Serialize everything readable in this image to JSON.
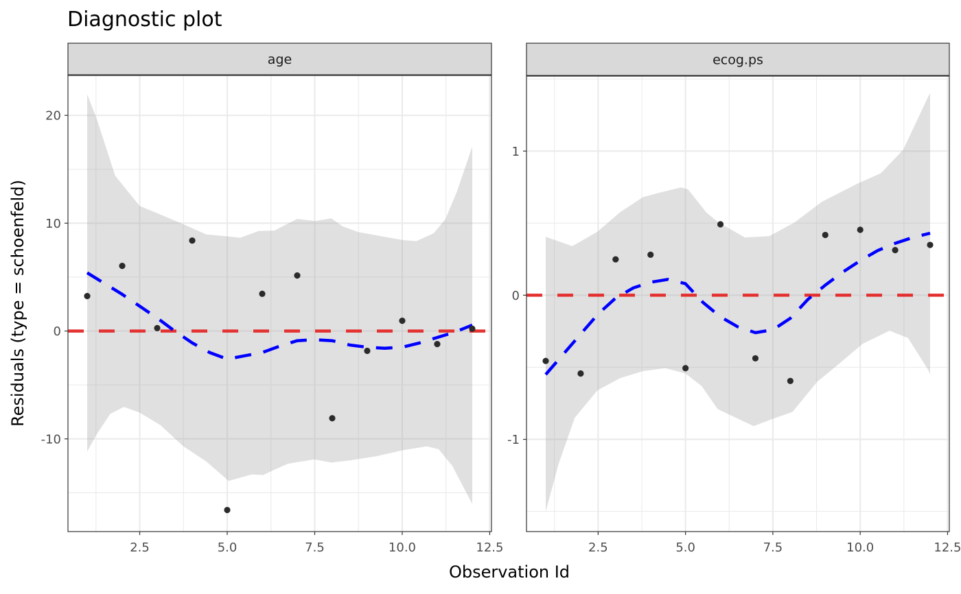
{
  "chart_data": {
    "type": "scatter",
    "title": "Diagnostic plot",
    "xlabel": "Observation Id",
    "ylabel": "Residuals (type = schoenfeld)",
    "grid": true,
    "colors": {
      "points": "#2b2b2b",
      "smooth": "#0000ff",
      "reference": "#e3302f",
      "band": "#e0e0e0",
      "strip": "#d9d9d9",
      "grid": "#ebebeb",
      "border": "#333333"
    },
    "panels": [
      {
        "strip_label": "age",
        "xlim": [
          0.45,
          12.55
        ],
        "ylim": [
          -18.6,
          23.7
        ],
        "x_ticks": [
          2.5,
          5.0,
          7.5,
          10.0,
          12.5
        ],
        "x_tick_labels": [
          "2.5",
          "5.0",
          "7.5",
          "10.0",
          "12.5"
        ],
        "y_ticks": [
          -10,
          0,
          10,
          20
        ],
        "y_tick_labels": [
          "-10",
          "0",
          "10",
          "20"
        ],
        "y_minor": [
          -15,
          -5,
          5,
          15
        ],
        "reference_y": 0,
        "points": {
          "x": [
            1,
            2,
            3,
            4,
            5,
            6,
            7,
            8,
            9,
            10,
            11,
            12
          ],
          "y": [
            3.24,
            6.04,
            0.27,
            8.39,
            -16.6,
            3.45,
            5.15,
            -8.09,
            -1.84,
            0.95,
            -1.21,
            0.21
          ]
        },
        "smooth": {
          "x": [
            1,
            1.5,
            2,
            2.5,
            3,
            3.5,
            4,
            4.5,
            5,
            5.5,
            6,
            6.5,
            7,
            7.5,
            8,
            8.5,
            9,
            9.5,
            10,
            10.5,
            11,
            11.5,
            12
          ],
          "y": [
            5.4,
            4.4,
            3.4,
            2.3,
            1.2,
            0.0,
            -1.1,
            -2.0,
            -2.6,
            -2.3,
            -2.0,
            -1.4,
            -0.9,
            -0.8,
            -0.9,
            -1.3,
            -1.5,
            -1.6,
            -1.5,
            -1.1,
            -0.6,
            -0.1,
            0.55
          ]
        },
        "band_upper": {
          "x": [
            1,
            1.27,
            1.8,
            2.5,
            3.09,
            3.75,
            4.4,
            5.04,
            5.37,
            5.9,
            6.35,
            7.0,
            7.52,
            7.97,
            8.3,
            8.75,
            9.28,
            10.0,
            10.4,
            10.9,
            11.23,
            11.56,
            12
          ],
          "y": [
            21.95,
            19.7,
            14.4,
            11.6,
            10.8,
            9.9,
            8.96,
            8.77,
            8.65,
            9.28,
            9.32,
            10.4,
            10.2,
            10.45,
            9.7,
            9.17,
            8.86,
            8.44,
            8.33,
            9.07,
            10.35,
            12.9,
            17.1
          ]
        },
        "band_lower": {
          "x": [
            1,
            1.27,
            1.66,
            2.05,
            2.5,
            3.09,
            3.75,
            4.4,
            5.04,
            5.7,
            6.03,
            6.35,
            6.74,
            7.49,
            7.97,
            8.5,
            9.28,
            10.0,
            10.7,
            11.04,
            11.43,
            12
          ],
          "y": [
            -11.17,
            -9.58,
            -7.67,
            -7.04,
            -7.57,
            -8.73,
            -10.7,
            -12.1,
            -13.9,
            -13.3,
            -13.35,
            -12.86,
            -12.3,
            -11.9,
            -12.2,
            -12.0,
            -11.6,
            -11.06,
            -10.7,
            -10.96,
            -12.5,
            -16.04
          ]
        }
      },
      {
        "strip_label": "ecog.ps",
        "xlim": [
          0.45,
          12.55
        ],
        "ylim": [
          -1.64,
          1.52
        ],
        "x_ticks": [
          2.5,
          5.0,
          7.5,
          10.0,
          12.5
        ],
        "x_tick_labels": [
          "2.5",
          "5.0",
          "7.5",
          "10.0",
          "12.5"
        ],
        "y_ticks": [
          -1,
          0,
          1
        ],
        "y_tick_labels": [
          "-1",
          "0",
          "1"
        ],
        "y_minor": [
          -1.5,
          -0.5,
          0.5,
          1.5
        ],
        "reference_y": 0,
        "points": {
          "x": [
            1,
            2,
            3,
            4,
            5,
            6,
            7,
            8,
            9,
            10,
            11,
            12
          ],
          "y": [
            -0.456,
            -0.543,
            0.249,
            0.281,
            -0.506,
            0.492,
            -0.438,
            -0.595,
            0.418,
            0.454,
            0.313,
            0.349
          ]
        },
        "smooth": {
          "x": [
            1,
            1.5,
            2,
            2.5,
            3,
            3.5,
            4,
            4.5,
            5,
            5.5,
            6,
            6.5,
            7,
            7.5,
            8,
            8.5,
            9,
            9.5,
            10,
            10.5,
            11,
            11.5,
            12
          ],
          "y": [
            -0.55,
            -0.41,
            -0.27,
            -0.13,
            -0.02,
            0.05,
            0.09,
            0.11,
            0.08,
            -0.05,
            -0.15,
            -0.22,
            -0.26,
            -0.24,
            -0.16,
            -0.03,
            0.07,
            0.16,
            0.24,
            0.31,
            0.36,
            0.4,
            0.43
          ]
        },
        "band_upper": {
          "x": [
            1,
            1.76,
            2.48,
            3.13,
            3.78,
            4.17,
            4.87,
            5.07,
            5.59,
            5.98,
            6.18,
            6.7,
            7.4,
            8.12,
            8.9,
            9.93,
            10.59,
            11.23,
            11.95,
            12
          ],
          "y": [
            0.405,
            0.34,
            0.44,
            0.576,
            0.68,
            0.706,
            0.748,
            0.735,
            0.576,
            0.497,
            0.473,
            0.4,
            0.41,
            0.505,
            0.648,
            0.775,
            0.846,
            1.01,
            1.38,
            1.4
          ]
        },
        "band_lower": {
          "x": [
            1,
            1.37,
            1.83,
            2.48,
            3.13,
            3.78,
            4.42,
            5.0,
            5.46,
            5.92,
            6.18,
            6.95,
            7.47,
            8.06,
            8.77,
            9.42,
            10.07,
            10.84,
            11.37,
            11.95,
            12
          ],
          "y": [
            -1.5,
            -1.17,
            -0.85,
            -0.66,
            -0.575,
            -0.527,
            -0.506,
            -0.543,
            -0.63,
            -0.79,
            -0.82,
            -0.908,
            -0.86,
            -0.81,
            -0.6,
            -0.47,
            -0.337,
            -0.246,
            -0.297,
            -0.52,
            -0.55
          ]
        }
      }
    ]
  }
}
